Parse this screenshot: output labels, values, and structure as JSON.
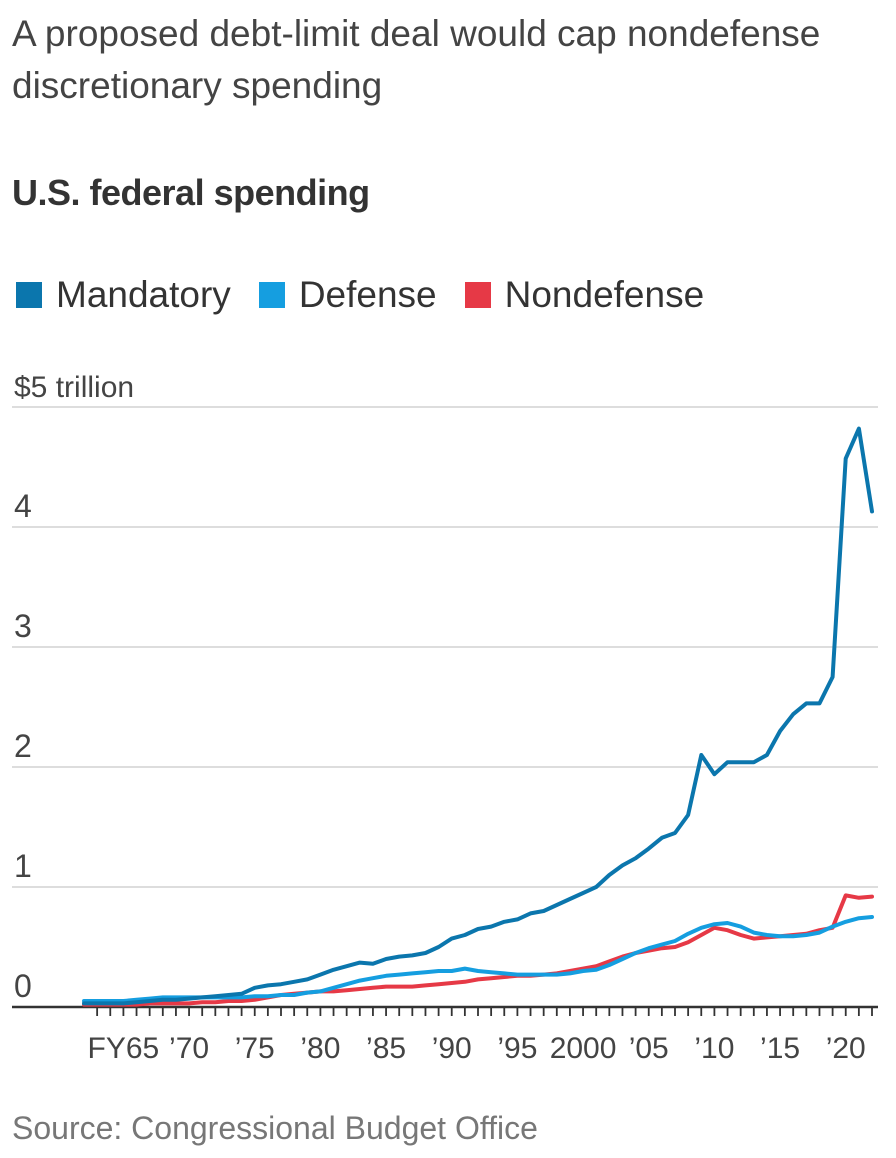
{
  "headline": "A proposed debt-limit deal would cap nondefense discretionary spending",
  "subhead": "U.S. federal spending",
  "source": "Source: Congressional Budget Office",
  "legend": [
    {
      "label": "Mandatory",
      "color": "#0b76ad"
    },
    {
      "label": "Defense",
      "color": "#159ee0"
    },
    {
      "label": "Nondefense",
      "color": "#e63946"
    }
  ],
  "chart_data": {
    "type": "line",
    "x_label": "",
    "y_label": "",
    "y_unit_label": "$5 trillion",
    "ylim": [
      0,
      5
    ],
    "y_ticks": [
      {
        "value": 0,
        "label": "0"
      },
      {
        "value": 1,
        "label": "1"
      },
      {
        "value": 2,
        "label": "2"
      },
      {
        "value": 3,
        "label": "3"
      },
      {
        "value": 4,
        "label": "4"
      },
      {
        "value": 5,
        "label": "$5 trillion"
      }
    ],
    "x_range": [
      1962,
      2022
    ],
    "x_ticks": [
      {
        "value": 1965,
        "label": "FY65"
      },
      {
        "value": 1970,
        "label": "’70"
      },
      {
        "value": 1975,
        "label": "’75"
      },
      {
        "value": 1980,
        "label": "’80"
      },
      {
        "value": 1985,
        "label": "’85"
      },
      {
        "value": 1990,
        "label": "’90"
      },
      {
        "value": 1995,
        "label": "’95"
      },
      {
        "value": 2000,
        "label": "2000"
      },
      {
        "value": 2005,
        "label": "’05"
      },
      {
        "value": 2010,
        "label": "’10"
      },
      {
        "value": 2015,
        "label": "’15"
      },
      {
        "value": 2020,
        "label": "’20"
      }
    ],
    "grid": true,
    "x": [
      1962,
      1963,
      1964,
      1965,
      1966,
      1967,
      1968,
      1969,
      1970,
      1971,
      1972,
      1973,
      1974,
      1975,
      1976,
      1977,
      1978,
      1979,
      1980,
      1981,
      1982,
      1983,
      1984,
      1985,
      1986,
      1987,
      1988,
      1989,
      1990,
      1991,
      1992,
      1993,
      1994,
      1995,
      1996,
      1997,
      1998,
      1999,
      2000,
      2001,
      2002,
      2003,
      2004,
      2005,
      2006,
      2007,
      2008,
      2009,
      2010,
      2011,
      2012,
      2013,
      2014,
      2015,
      2016,
      2017,
      2018,
      2019,
      2020,
      2021,
      2022
    ],
    "series": [
      {
        "name": "Mandatory",
        "color": "#0b76ad",
        "values": [
          0.03,
          0.03,
          0.03,
          0.03,
          0.04,
          0.05,
          0.06,
          0.06,
          0.07,
          0.08,
          0.09,
          0.1,
          0.11,
          0.16,
          0.18,
          0.19,
          0.21,
          0.23,
          0.27,
          0.31,
          0.34,
          0.37,
          0.36,
          0.4,
          0.42,
          0.43,
          0.45,
          0.5,
          0.57,
          0.6,
          0.65,
          0.67,
          0.71,
          0.73,
          0.78,
          0.8,
          0.85,
          0.9,
          0.95,
          1.0,
          1.1,
          1.18,
          1.24,
          1.32,
          1.41,
          1.45,
          1.6,
          2.1,
          1.94,
          2.04,
          2.04,
          2.04,
          2.1,
          2.3,
          2.44,
          2.53,
          2.53,
          2.75,
          4.57,
          4.82,
          4.13
        ]
      },
      {
        "name": "Defense",
        "color": "#159ee0",
        "values": [
          0.05,
          0.05,
          0.05,
          0.05,
          0.06,
          0.07,
          0.08,
          0.08,
          0.08,
          0.08,
          0.08,
          0.08,
          0.08,
          0.09,
          0.09,
          0.1,
          0.1,
          0.12,
          0.13,
          0.16,
          0.19,
          0.22,
          0.24,
          0.26,
          0.27,
          0.28,
          0.29,
          0.3,
          0.3,
          0.32,
          0.3,
          0.29,
          0.28,
          0.27,
          0.27,
          0.27,
          0.27,
          0.28,
          0.3,
          0.31,
          0.35,
          0.4,
          0.45,
          0.49,
          0.52,
          0.55,
          0.61,
          0.66,
          0.69,
          0.7,
          0.67,
          0.62,
          0.6,
          0.59,
          0.59,
          0.6,
          0.62,
          0.67,
          0.71,
          0.74,
          0.75
        ]
      },
      {
        "name": "Nondefense",
        "color": "#e63946",
        "values": [
          0.02,
          0.02,
          0.02,
          0.02,
          0.02,
          0.03,
          0.03,
          0.03,
          0.03,
          0.04,
          0.04,
          0.05,
          0.05,
          0.06,
          0.08,
          0.1,
          0.11,
          0.12,
          0.13,
          0.13,
          0.14,
          0.15,
          0.16,
          0.17,
          0.17,
          0.17,
          0.18,
          0.19,
          0.2,
          0.21,
          0.23,
          0.24,
          0.25,
          0.26,
          0.26,
          0.27,
          0.28,
          0.3,
          0.32,
          0.34,
          0.38,
          0.42,
          0.45,
          0.47,
          0.49,
          0.5,
          0.54,
          0.6,
          0.66,
          0.64,
          0.6,
          0.57,
          0.58,
          0.59,
          0.6,
          0.61,
          0.64,
          0.66,
          0.93,
          0.91,
          0.92
        ]
      }
    ]
  }
}
